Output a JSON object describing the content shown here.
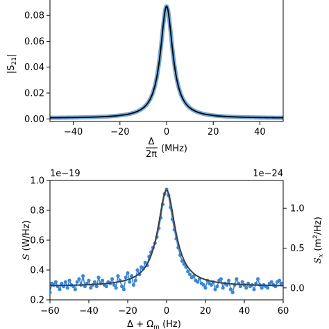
{
  "chart_data": [
    {
      "type": "line",
      "ylabel": "|S21|",
      "xlabel": "Δ/2π (MHz)",
      "xlim": [
        -50,
        50
      ],
      "ylim": [
        -0.002,
        0.093
      ],
      "xticks": [
        -40,
        -20,
        0,
        20,
        40
      ],
      "xtick_labels": [
        "−40",
        "−20",
        "0",
        "20",
        "40"
      ],
      "yticks": [
        0.0,
        0.02,
        0.04,
        0.06,
        0.08
      ],
      "ytick_labels": [
        "0.00",
        "0.02",
        "0.04",
        "0.06",
        "0.08"
      ],
      "series": [
        {
          "style": "measured-thick",
          "color": "#5b9bd5",
          "model": "lorentzian",
          "center": 0,
          "peak": 0.087,
          "hwhm": 3.2,
          "offset": 0.0005
        },
        {
          "style": "fit-line",
          "color": "#000000",
          "model": "lorentzian",
          "center": 0,
          "peak": 0.087,
          "hwhm": 3.2,
          "offset": 0.0005
        }
      ]
    },
    {
      "type": "line",
      "ylabel": "S (W/Hz)",
      "ylabel_right": "Sx (m²/Hz)",
      "xlabel": "Δ + Ωm (Hz)",
      "xlabel_visible_part": "Δ + Ωm",
      "xlim": [
        -60,
        60
      ],
      "ylim": [
        0.2,
        1.0
      ],
      "y_multiplier": "1e−19",
      "yticks": [
        0.2,
        0.4,
        0.6,
        0.8,
        1.0
      ],
      "ytick_labels": [
        "0.2",
        "0.4",
        "0.6",
        "0.8",
        "1.0"
      ],
      "xticks": [
        -60,
        -40,
        -20,
        0,
        20,
        40,
        60
      ],
      "xtick_labels": [
        "−60",
        "−40",
        "−20",
        "0",
        "20",
        "40",
        "60"
      ],
      "right_axis": {
        "multiplier": "1e−24",
        "ylim": [
          -0.15,
          1.35
        ],
        "yticks": [
          0.0,
          0.5,
          1.0
        ],
        "ytick_labels": [
          "0.0",
          "0.5",
          "1.0"
        ]
      },
      "series": [
        {
          "style": "markers-line",
          "color": "#3a86d9",
          "x": [
            -60,
            -59,
            -58,
            -57,
            -56,
            -55,
            -54,
            -53,
            -52,
            -51,
            -50,
            -49,
            -48,
            -47,
            -46,
            -45,
            -44,
            -43,
            -42,
            -41,
            -40,
            -39,
            -38,
            -37,
            -36,
            -35,
            -34,
            -33,
            -32,
            -31,
            -30,
            -29,
            -28,
            -27,
            -26,
            -25,
            -24,
            -23,
            -22,
            -21,
            -20,
            -19,
            -18,
            -17,
            -16,
            -15,
            -14,
            -13,
            -12,
            -11,
            -10,
            -9,
            -8,
            -7,
            -6,
            -5,
            -4,
            -3,
            -2,
            -1,
            0,
            1,
            2,
            3,
            4,
            5,
            6,
            7,
            8,
            9,
            10,
            11,
            12,
            13,
            14,
            15,
            16,
            17,
            18,
            19,
            20,
            21,
            22,
            23,
            24,
            25,
            26,
            27,
            28,
            29,
            30,
            31,
            32,
            33,
            34,
            35,
            36,
            37,
            38,
            39,
            40,
            41,
            42,
            43,
            44,
            45,
            46,
            47,
            48,
            49,
            50,
            51,
            52,
            53,
            54,
            55,
            56,
            57,
            58,
            59,
            60
          ],
          "y": [
            0.25,
            0.31,
            0.3,
            0.32,
            0.29,
            0.27,
            0.31,
            0.29,
            0.32,
            0.28,
            0.33,
            0.3,
            0.29,
            0.27,
            0.32,
            0.34,
            0.3,
            0.36,
            0.29,
            0.31,
            0.33,
            0.28,
            0.3,
            0.32,
            0.29,
            0.35,
            0.31,
            0.33,
            0.3,
            0.29,
            0.32,
            0.31,
            0.34,
            0.3,
            0.28,
            0.36,
            0.33,
            0.29,
            0.27,
            0.35,
            0.38,
            0.32,
            0.36,
            0.3,
            0.33,
            0.4,
            0.37,
            0.42,
            0.41,
            0.45,
            0.43,
            0.49,
            0.52,
            0.55,
            0.58,
            0.62,
            0.68,
            0.75,
            0.84,
            0.91,
            0.94,
            0.9,
            0.82,
            0.74,
            0.67,
            0.61,
            0.55,
            0.5,
            0.46,
            0.44,
            0.42,
            0.39,
            0.37,
            0.35,
            0.36,
            0.33,
            0.32,
            0.34,
            0.31,
            0.3,
            0.28,
            0.33,
            0.31,
            0.3,
            0.32,
            0.27,
            0.29,
            0.33,
            0.34,
            0.28,
            0.31,
            0.3,
            0.33,
            0.27,
            0.25,
            0.3,
            0.34,
            0.31,
            0.29,
            0.32,
            0.3,
            0.28,
            0.31,
            0.29,
            0.3,
            0.27,
            0.31,
            0.34,
            0.3,
            0.28,
            0.3,
            0.29,
            0.28,
            0.31,
            0.32,
            0.3,
            0.29,
            0.32,
            0.33,
            0.31,
            0.3
          ]
        },
        {
          "style": "fit-line",
          "color": "#3f3f3f",
          "model": "lorentzian",
          "center": 0,
          "peak": 0.935,
          "hwhm": 5.5,
          "offset": 0.29
        }
      ]
    }
  ]
}
